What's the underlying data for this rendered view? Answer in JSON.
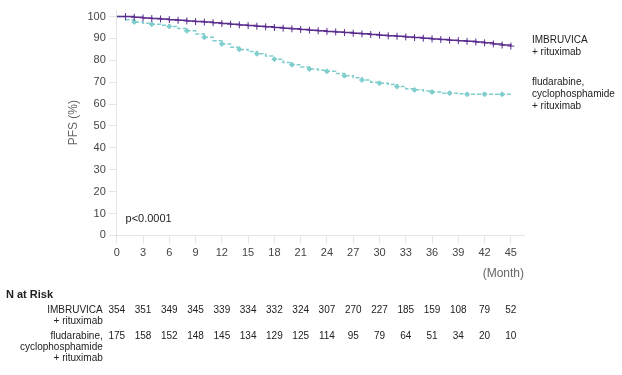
{
  "chart_data": {
    "type": "step",
    "x_label": "(Month)",
    "y_label": "PFS (%)",
    "xlim": [
      0,
      46.5
    ],
    "ylim": [
      0,
      103
    ],
    "xticks": [
      0,
      3,
      6,
      9,
      12,
      15,
      18,
      21,
      24,
      27,
      30,
      33,
      36,
      39,
      42,
      45
    ],
    "yticks": [
      0,
      10,
      20,
      30,
      40,
      50,
      60,
      70,
      80,
      90,
      100
    ],
    "grid": false,
    "annotations": [
      {
        "text": "p<0.0001",
        "x": 1,
        "y": 5
      }
    ],
    "risk_table_title": "N at Risk",
    "series": [
      {
        "name": "IMBRUVICA\n+ rituximab",
        "color": "#5B2D8E",
        "line_style": "solid",
        "marker": "plus",
        "x": [
          0,
          1,
          2,
          3,
          4,
          5,
          6,
          7,
          8,
          9,
          10,
          11,
          12,
          13,
          14,
          15,
          16,
          17,
          18,
          19,
          20,
          21,
          22,
          23,
          24,
          25,
          26,
          27,
          28,
          29,
          30,
          31,
          32,
          33,
          34,
          35,
          36,
          37,
          38,
          39,
          40,
          41,
          42,
          43,
          44,
          45
        ],
        "values": [
          100,
          100,
          99.7,
          99.4,
          99.1,
          98.9,
          98.6,
          98.3,
          98.0,
          97.7,
          97.5,
          97.2,
          96.8,
          96.5,
          96.2,
          95.9,
          95.6,
          95.3,
          95.0,
          94.7,
          94.4,
          94.1,
          93.8,
          93.5,
          93.2,
          93.0,
          92.7,
          92.4,
          92.1,
          91.8,
          91.5,
          91.2,
          91.0,
          90.7,
          90.4,
          90.1,
          89.8,
          89.5,
          89.2,
          89.0,
          88.7,
          88.4,
          88.0,
          87.5,
          87.0,
          86.5
        ],
        "censor_x": [
          1,
          2,
          3,
          4,
          5,
          6,
          7,
          8,
          9,
          10,
          11,
          12,
          13,
          14,
          15,
          16,
          17,
          18,
          19,
          20,
          21,
          22,
          23,
          24,
          25,
          26,
          27,
          28,
          29,
          30,
          31,
          32,
          33,
          34,
          35,
          36,
          37,
          38,
          39,
          40,
          41,
          42,
          43,
          44,
          45
        ],
        "censor_values": [
          100,
          99.7,
          99.4,
          99.1,
          98.9,
          98.6,
          98.3,
          98.0,
          97.7,
          97.5,
          97.2,
          96.8,
          96.5,
          96.2,
          95.9,
          95.6,
          95.3,
          95.0,
          94.7,
          94.4,
          94.1,
          93.8,
          93.5,
          93.2,
          93.0,
          92.7,
          92.4,
          92.1,
          91.8,
          91.5,
          91.2,
          91.0,
          90.7,
          90.4,
          90.1,
          89.8,
          89.5,
          89.2,
          89.0,
          88.7,
          88.4,
          88.0,
          87.5,
          87.0,
          86.5
        ],
        "n_at_risk": [
          354,
          351,
          349,
          345,
          339,
          334,
          332,
          324,
          307,
          270,
          227,
          185,
          159,
          108,
          79,
          52
        ]
      },
      {
        "name": "fludarabine,\ncyclophosphamide\n+ rituximab",
        "color": "#7FCECD",
        "line_style": "dashed",
        "marker": "diamond",
        "x": [
          0,
          1,
          2,
          3,
          4,
          5,
          6,
          7,
          8,
          9,
          10,
          11,
          12,
          13,
          14,
          15,
          16,
          17,
          18,
          19,
          20,
          21,
          22,
          23,
          24,
          25,
          26,
          27,
          28,
          29,
          30,
          31,
          32,
          33,
          34,
          35,
          36,
          37,
          38,
          39,
          40,
          41,
          42,
          43,
          44,
          45
        ],
        "values": [
          100,
          98.5,
          97.5,
          97.0,
          96.5,
          96.0,
          95.5,
          94.5,
          93.5,
          92.0,
          90.5,
          89.0,
          87.5,
          86.0,
          85.0,
          84.0,
          83.0,
          82.0,
          80.5,
          79.0,
          78.0,
          77.0,
          76.0,
          75.5,
          75.0,
          74.0,
          73.0,
          72.0,
          71.0,
          70.0,
          69.5,
          69.0,
          68.0,
          67.0,
          66.5,
          66.0,
          65.5,
          65.0,
          65.0,
          64.7,
          64.5,
          64.5,
          64.5,
          64.5,
          64.5,
          64.5
        ],
        "censor_x": [
          2,
          4,
          6,
          8,
          10,
          12,
          14,
          16,
          18,
          20,
          22,
          24,
          26,
          28,
          30,
          32,
          34,
          36,
          38,
          40,
          42,
          44
        ],
        "censor_values": [
          97.5,
          96.5,
          95.5,
          93.5,
          90.5,
          87.5,
          85.0,
          83.0,
          80.5,
          78.0,
          76.0,
          75.0,
          73.0,
          71.0,
          69.5,
          68.0,
          66.5,
          65.5,
          65.0,
          64.5,
          64.5,
          64.5
        ],
        "n_at_risk": [
          175,
          158,
          152,
          148,
          145,
          134,
          129,
          125,
          114,
          95,
          79,
          64,
          51,
          34,
          20,
          10
        ]
      }
    ]
  }
}
